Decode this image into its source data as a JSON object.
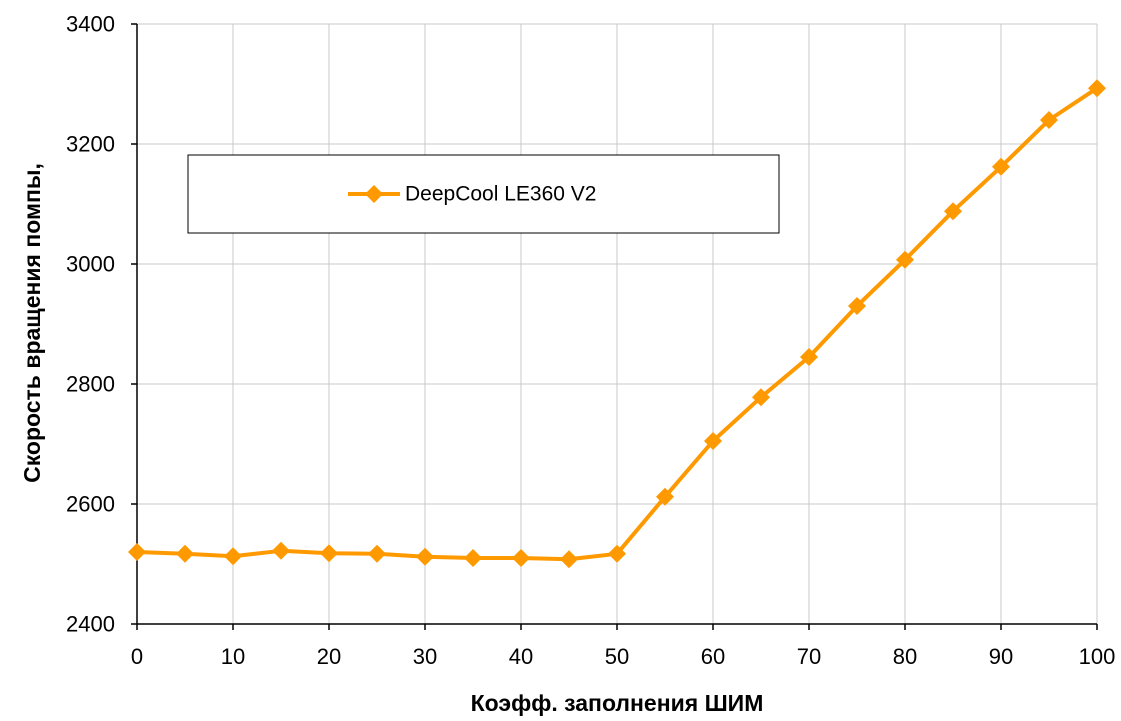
{
  "chart_data": {
    "type": "line",
    "x": [
      0,
      5,
      10,
      15,
      20,
      25,
      30,
      35,
      40,
      45,
      50,
      55,
      60,
      65,
      70,
      75,
      80,
      85,
      90,
      95,
      100
    ],
    "series": [
      {
        "name": "DeepCool LE360 V2",
        "values": [
          2520,
          2517,
          2513,
          2522,
          2518,
          2517,
          2512,
          2510,
          2510,
          2508,
          2517,
          2612,
          2705,
          2778,
          2845,
          2930,
          3007,
          3088,
          3162,
          3240,
          3293
        ],
        "color": "#FF9900",
        "marker": "diamond"
      }
    ],
    "xlabel": "Коэфф. заполнения ШИМ",
    "ylabel": "Скорость вращения помпы,",
    "xlim": [
      0,
      100
    ],
    "ylim": [
      2400,
      3400
    ],
    "xticks": [
      0,
      10,
      20,
      30,
      40,
      50,
      60,
      70,
      80,
      90,
      100
    ],
    "yticks": [
      2400,
      2600,
      2800,
      3000,
      3200,
      3400
    ],
    "grid": true,
    "legend": "upper-left"
  }
}
